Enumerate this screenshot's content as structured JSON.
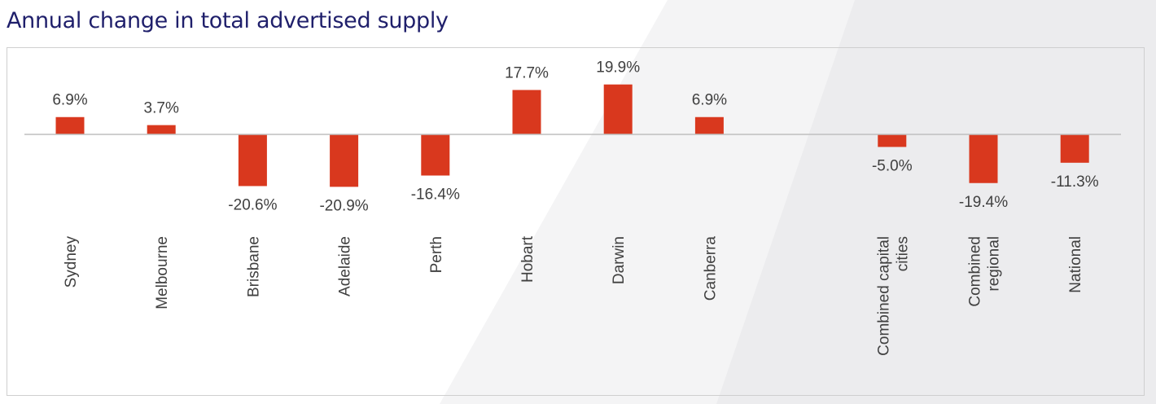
{
  "title": "Annual change in total advertised supply",
  "colors": {
    "bar": "#d9381e",
    "axis": "#bfbfbf",
    "title": "#1f1f6b",
    "text": "#404040"
  },
  "chart_data": {
    "type": "bar",
    "title": "Annual change in total advertised supply",
    "categories": [
      "Sydney",
      "Melbourne",
      "Brisbane",
      "Adelaide",
      "Perth",
      "Hobart",
      "Darwin",
      "Canberra",
      "",
      "Combined capital cities",
      "Combined regional",
      "National"
    ],
    "values": [
      6.9,
      3.7,
      -20.6,
      -20.9,
      -16.4,
      17.7,
      19.9,
      6.9,
      null,
      -5.0,
      -19.4,
      -11.3
    ],
    "data_labels": [
      "6.9%",
      "3.7%",
      "-20.6%",
      "-20.9%",
      "-16.4%",
      "17.7%",
      "19.9%",
      "6.9%",
      "",
      "-5.0%",
      "-19.4%",
      "-11.3%"
    ],
    "unit": "%",
    "ylim": [
      -25,
      25
    ],
    "grid": false,
    "legend": "none"
  }
}
